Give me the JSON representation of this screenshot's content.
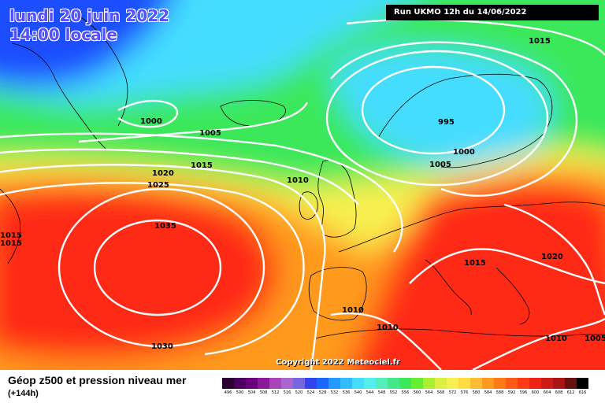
{
  "header": {
    "date": "lundi 20 juin 2022",
    "time": "14:00 locale",
    "run": "Run UKMO 12h du 14/06/2022"
  },
  "map": {
    "copyright": "Copyright 2022 Meteociel.fr",
    "isobar_labels": [
      "1000",
      "1005",
      "1015",
      "1020",
      "1025",
      "1035",
      "1030",
      "1010",
      "995",
      "1000",
      "1005",
      "1015",
      "1015",
      "1015",
      "1020",
      "1010",
      "1010",
      "1010",
      "1005",
      "1015"
    ],
    "colors": {
      "low_center": "#1f4dff",
      "cyan": "#44ddff",
      "green": "#3be85a",
      "yellow": "#f8f050",
      "orange": "#ff9a1e",
      "red": "#ff2a14",
      "isobar": "#ffffff",
      "coast": "#000000"
    }
  },
  "legend": {
    "title": "Géop z500 et pression niveau mer",
    "subtitle": "(+144h)",
    "scale_labels": [
      "496",
      "500",
      "504",
      "508",
      "512",
      "516",
      "520",
      "524",
      "528",
      "532",
      "536",
      "540",
      "544",
      "548",
      "552",
      "556",
      "560",
      "564",
      "568",
      "572",
      "576",
      "580",
      "584",
      "588",
      "592",
      "596",
      "600",
      "604",
      "608",
      "612",
      "616"
    ],
    "scale_colors": [
      "#2a0030",
      "#4a0060",
      "#6a007a",
      "#8a1a9a",
      "#aa44bb",
      "#aa66cc",
      "#7766dd",
      "#3344ee",
      "#1a66ff",
      "#2299ff",
      "#33bbff",
      "#44ddff",
      "#55eeee",
      "#55eebb",
      "#44e888",
      "#3be85a",
      "#66ee33",
      "#aaf030",
      "#ddf040",
      "#f8f050",
      "#ffdd40",
      "#ffbb33",
      "#ff9a1e",
      "#ff7a16",
      "#ff5a14",
      "#ff3a14",
      "#ee2214",
      "#cc1a14",
      "#aa1414",
      "#661010",
      "#000000"
    ]
  }
}
